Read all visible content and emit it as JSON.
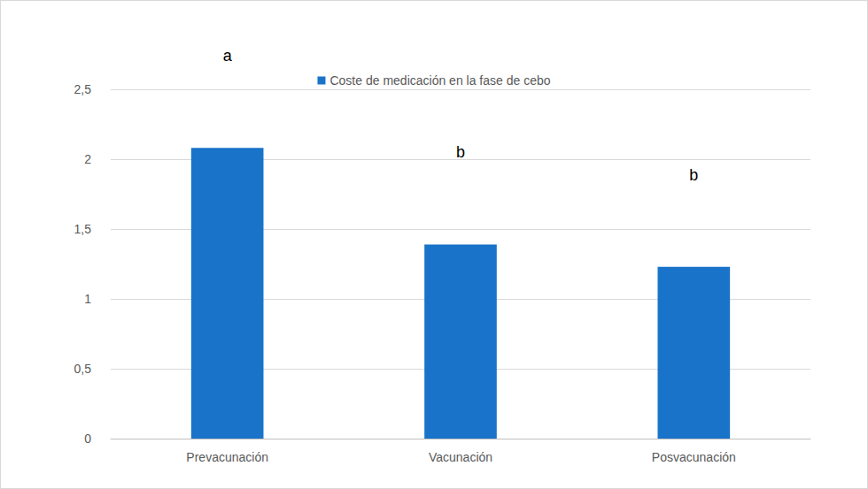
{
  "chart_data": {
    "type": "bar",
    "categories": [
      "Prevacunación",
      "Vacunación",
      "Posvacunación"
    ],
    "series": [
      {
        "name": "Coste de medicación en la fase de cebo",
        "color": "#1873c9",
        "values": [
          2.08,
          1.39,
          1.23
        ]
      }
    ],
    "annotations": [
      "a",
      "b",
      "b"
    ],
    "ylim": [
      0,
      2.5
    ],
    "yticks": [
      0,
      {
        "value": 0.5,
        "label": "0,5"
      },
      1,
      {
        "value": 1.5,
        "label": "1,5"
      },
      2,
      {
        "value": 2.5,
        "label": "2,5"
      }
    ],
    "grid": true,
    "legend": "top"
  }
}
